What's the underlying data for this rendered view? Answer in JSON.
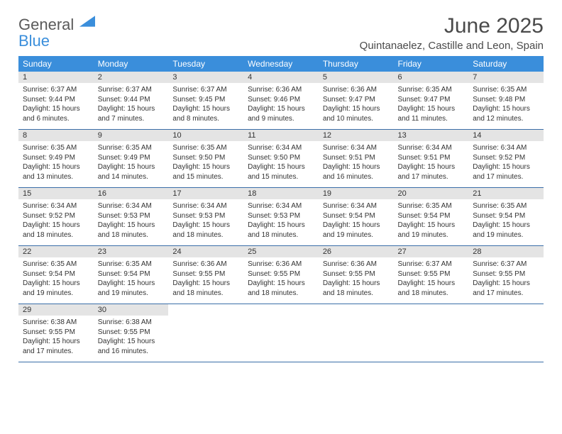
{
  "logo": {
    "line1": "General",
    "line2": "Blue"
  },
  "title": "June 2025",
  "location": "Quintanaelez, Castille and Leon, Spain",
  "colors": {
    "header_bg": "#3a8edb",
    "header_text": "#ffffff",
    "daynum_bg": "#e4e4e4",
    "border": "#3a6ea8",
    "logo_gray": "#5a5a5a",
    "logo_blue": "#3a8edb"
  },
  "weekdays": [
    "Sunday",
    "Monday",
    "Tuesday",
    "Wednesday",
    "Thursday",
    "Friday",
    "Saturday"
  ],
  "weeks": [
    [
      {
        "n": "1",
        "sr": "6:37 AM",
        "ss": "9:44 PM",
        "dl": "15 hours and 6 minutes."
      },
      {
        "n": "2",
        "sr": "6:37 AM",
        "ss": "9:44 PM",
        "dl": "15 hours and 7 minutes."
      },
      {
        "n": "3",
        "sr": "6:37 AM",
        "ss": "9:45 PM",
        "dl": "15 hours and 8 minutes."
      },
      {
        "n": "4",
        "sr": "6:36 AM",
        "ss": "9:46 PM",
        "dl": "15 hours and 9 minutes."
      },
      {
        "n": "5",
        "sr": "6:36 AM",
        "ss": "9:47 PM",
        "dl": "15 hours and 10 minutes."
      },
      {
        "n": "6",
        "sr": "6:35 AM",
        "ss": "9:47 PM",
        "dl": "15 hours and 11 minutes."
      },
      {
        "n": "7",
        "sr": "6:35 AM",
        "ss": "9:48 PM",
        "dl": "15 hours and 12 minutes."
      }
    ],
    [
      {
        "n": "8",
        "sr": "6:35 AM",
        "ss": "9:49 PM",
        "dl": "15 hours and 13 minutes."
      },
      {
        "n": "9",
        "sr": "6:35 AM",
        "ss": "9:49 PM",
        "dl": "15 hours and 14 minutes."
      },
      {
        "n": "10",
        "sr": "6:35 AM",
        "ss": "9:50 PM",
        "dl": "15 hours and 15 minutes."
      },
      {
        "n": "11",
        "sr": "6:34 AM",
        "ss": "9:50 PM",
        "dl": "15 hours and 15 minutes."
      },
      {
        "n": "12",
        "sr": "6:34 AM",
        "ss": "9:51 PM",
        "dl": "15 hours and 16 minutes."
      },
      {
        "n": "13",
        "sr": "6:34 AM",
        "ss": "9:51 PM",
        "dl": "15 hours and 17 minutes."
      },
      {
        "n": "14",
        "sr": "6:34 AM",
        "ss": "9:52 PM",
        "dl": "15 hours and 17 minutes."
      }
    ],
    [
      {
        "n": "15",
        "sr": "6:34 AM",
        "ss": "9:52 PM",
        "dl": "15 hours and 18 minutes."
      },
      {
        "n": "16",
        "sr": "6:34 AM",
        "ss": "9:53 PM",
        "dl": "15 hours and 18 minutes."
      },
      {
        "n": "17",
        "sr": "6:34 AM",
        "ss": "9:53 PM",
        "dl": "15 hours and 18 minutes."
      },
      {
        "n": "18",
        "sr": "6:34 AM",
        "ss": "9:53 PM",
        "dl": "15 hours and 18 minutes."
      },
      {
        "n": "19",
        "sr": "6:34 AM",
        "ss": "9:54 PM",
        "dl": "15 hours and 19 minutes."
      },
      {
        "n": "20",
        "sr": "6:35 AM",
        "ss": "9:54 PM",
        "dl": "15 hours and 19 minutes."
      },
      {
        "n": "21",
        "sr": "6:35 AM",
        "ss": "9:54 PM",
        "dl": "15 hours and 19 minutes."
      }
    ],
    [
      {
        "n": "22",
        "sr": "6:35 AM",
        "ss": "9:54 PM",
        "dl": "15 hours and 19 minutes."
      },
      {
        "n": "23",
        "sr": "6:35 AM",
        "ss": "9:54 PM",
        "dl": "15 hours and 19 minutes."
      },
      {
        "n": "24",
        "sr": "6:36 AM",
        "ss": "9:55 PM",
        "dl": "15 hours and 18 minutes."
      },
      {
        "n": "25",
        "sr": "6:36 AM",
        "ss": "9:55 PM",
        "dl": "15 hours and 18 minutes."
      },
      {
        "n": "26",
        "sr": "6:36 AM",
        "ss": "9:55 PM",
        "dl": "15 hours and 18 minutes."
      },
      {
        "n": "27",
        "sr": "6:37 AM",
        "ss": "9:55 PM",
        "dl": "15 hours and 18 minutes."
      },
      {
        "n": "28",
        "sr": "6:37 AM",
        "ss": "9:55 PM",
        "dl": "15 hours and 17 minutes."
      }
    ],
    [
      {
        "n": "29",
        "sr": "6:38 AM",
        "ss": "9:55 PM",
        "dl": "15 hours and 17 minutes."
      },
      {
        "n": "30",
        "sr": "6:38 AM",
        "ss": "9:55 PM",
        "dl": "15 hours and 16 minutes."
      },
      null,
      null,
      null,
      null,
      null
    ]
  ],
  "labels": {
    "sunrise": "Sunrise:",
    "sunset": "Sunset:",
    "daylight": "Daylight:"
  }
}
